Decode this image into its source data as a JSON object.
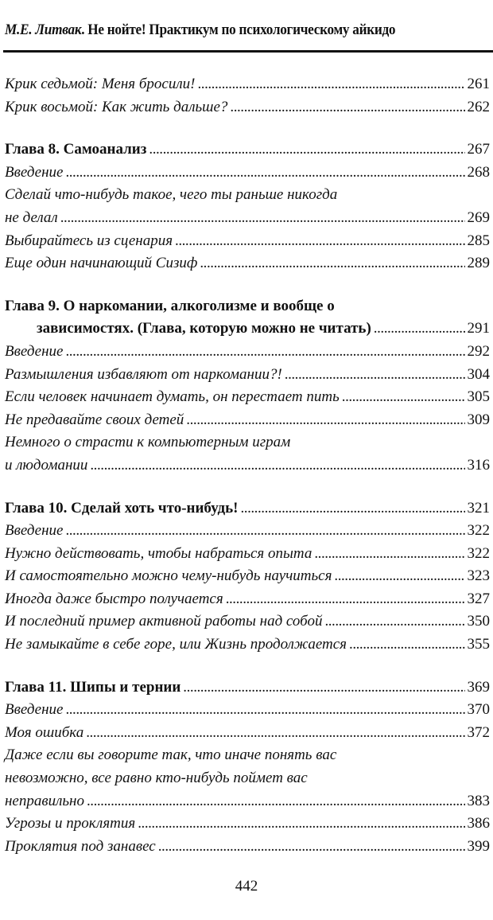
{
  "header": {
    "author": "М.Е. Литвак",
    "title": ". Не нойте! Практикум по психологическому айкидо"
  },
  "groups": [
    {
      "entries": [
        {
          "type": "section",
          "lines": [
            "Крик седьмой: Меня бросили!"
          ],
          "page": "261"
        },
        {
          "type": "section",
          "lines": [
            "Крик восьмой: Как жить дальше?"
          ],
          "page": "262"
        }
      ]
    },
    {
      "entries": [
        {
          "type": "chapter",
          "lines": [
            "Глава 8. Самоанализ"
          ],
          "page": "267"
        },
        {
          "type": "section",
          "lines": [
            "Введение"
          ],
          "page": "268"
        },
        {
          "type": "section",
          "lines": [
            "Сделай что-нибудь такое, чего ты раньше никогда",
            "не делал"
          ],
          "page": "269"
        },
        {
          "type": "section",
          "lines": [
            "Выбирайтесь из сценария"
          ],
          "page": "285"
        },
        {
          "type": "section",
          "lines": [
            "Еще один начинающий Сизиф"
          ],
          "page": "289"
        }
      ]
    },
    {
      "entries": [
        {
          "type": "chapter",
          "lines": [
            "Глава 9. О наркомании, алкоголизме и вообще о",
            "зависимостях. (Глава, которую можно не читать)"
          ],
          "page": "291"
        },
        {
          "type": "section",
          "lines": [
            "Введение"
          ],
          "page": "292"
        },
        {
          "type": "section",
          "lines": [
            "Размышления избавляют от наркомании?!"
          ],
          "page": "304"
        },
        {
          "type": "section",
          "lines": [
            "Если человек начинает думать, он перестает пить"
          ],
          "page": "305"
        },
        {
          "type": "section",
          "lines": [
            "Не предавайте своих детей"
          ],
          "page": "309"
        },
        {
          "type": "section",
          "lines": [
            "Немного о страсти к компьютерным играм",
            "и людомании"
          ],
          "page": "316"
        }
      ]
    },
    {
      "entries": [
        {
          "type": "chapter",
          "lines": [
            "Глава 10. Сделай хоть что-нибудь!"
          ],
          "page": "321"
        },
        {
          "type": "section",
          "lines": [
            "Введение"
          ],
          "page": "322"
        },
        {
          "type": "section",
          "lines": [
            "Нужно действовать, чтобы набраться опыта"
          ],
          "page": "322"
        },
        {
          "type": "section",
          "lines": [
            "И самостоятельно можно чему-нибудь научиться"
          ],
          "page": "323"
        },
        {
          "type": "section",
          "lines": [
            "Иногда даже быстро получается"
          ],
          "page": "327"
        },
        {
          "type": "section",
          "lines": [
            "И последний пример активной работы над собой"
          ],
          "page": "350"
        },
        {
          "type": "section",
          "lines": [
            "Не замыкайте в себе горе, или Жизнь продолжается"
          ],
          "page": "355"
        }
      ]
    },
    {
      "entries": [
        {
          "type": "chapter",
          "lines": [
            "Глава 11. Шипы и тернии"
          ],
          "page": "369"
        },
        {
          "type": "section",
          "lines": [
            "Введение"
          ],
          "page": "370"
        },
        {
          "type": "section",
          "lines": [
            "Моя ошибка"
          ],
          "page": "372"
        },
        {
          "type": "section",
          "lines": [
            "Даже если вы говорите так, что иначе понять вас",
            "невозможно, все равно кто-нибудь поймет вас",
            "неправильно"
          ],
          "page": "383"
        },
        {
          "type": "section",
          "lines": [
            "Угрозы и проклятия"
          ],
          "page": "386"
        },
        {
          "type": "section",
          "lines": [
            "Проклятия под занавес"
          ],
          "page": "399"
        }
      ]
    }
  ],
  "folio": "442"
}
